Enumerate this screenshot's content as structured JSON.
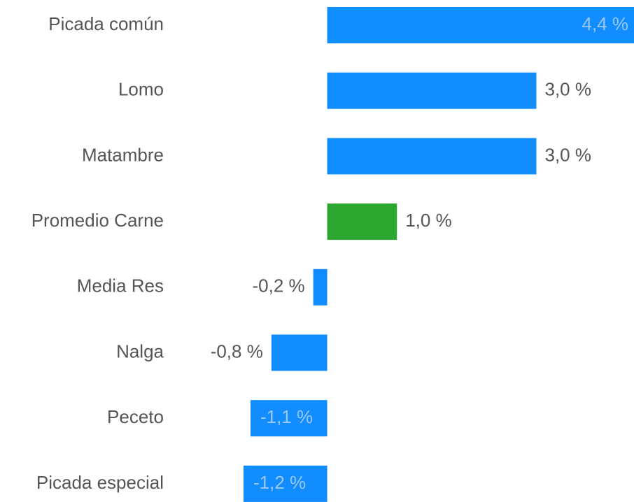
{
  "chart_data": {
    "type": "hbar",
    "categories": [
      "Picada común",
      "Lomo",
      "Matambre",
      "Promedio Carne",
      "Media Res",
      "Nalga",
      "Peceto",
      "Picada especial"
    ],
    "values": [
      4.4,
      3.0,
      3.0,
      1.0,
      -0.2,
      -0.8,
      -1.1,
      -1.2
    ],
    "value_labels": [
      "4,4 %",
      "3,0 %",
      "3,0 %",
      "1,0 %",
      "-0,2 %",
      "-0,8 %",
      "-1,1 %",
      "-1,2 %"
    ],
    "colors": [
      "#118dff",
      "#118dff",
      "#118dff",
      "#2ca831",
      "#118dff",
      "#118dff",
      "#118dff",
      "#118dff"
    ],
    "xlim": [
      -1.2,
      4.4
    ]
  }
}
